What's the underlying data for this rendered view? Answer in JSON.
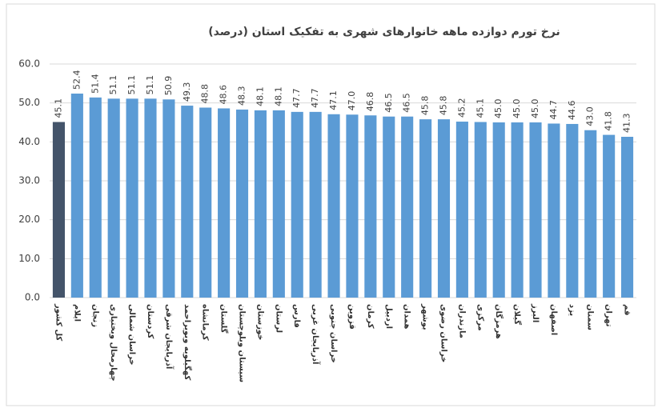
{
  "chart_data": {
    "type": "bar",
    "title": "نرخ تورم دوازده ماهه خانوارهای شهری به تفکیک استان (درصد)",
    "categories": [
      "کل کشور",
      "ایلام",
      "زنجان",
      "چهارمحال وبختیاری",
      "خراسان شمالی",
      "کردستان",
      "آذربایجان شرقی",
      "کهگیلویه وبویراحمد",
      "کرمانشاه",
      "گلستان",
      "سیستان وبلوچستان",
      "خوزستان",
      "لرستان",
      "فارس",
      "آذربایجان غربی",
      "خراسان جنوبی",
      "قزوین",
      "کرمان",
      "اردبیل",
      "همدان",
      "بوشهر",
      "خراسان رضوی",
      "مازندران",
      "مرکزی",
      "هرمزگان",
      "گیلان",
      "البرز",
      "اصفهان",
      "یزد",
      "سمنان",
      "تهران",
      "قم"
    ],
    "values": [
      45.1,
      52.4,
      51.4,
      51.1,
      51.1,
      51.1,
      50.9,
      49.3,
      48.8,
      48.6,
      48.3,
      48.1,
      48.1,
      47.7,
      47.7,
      47.1,
      47.0,
      46.8,
      46.5,
      46.5,
      45.8,
      45.8,
      45.2,
      45.1,
      45.0,
      45.0,
      45.0,
      44.7,
      44.6,
      43.0,
      41.8,
      41.3
    ],
    "value_labels": [
      "45.1",
      "52.4",
      "51.4",
      "51.1",
      "51.1",
      "51.1",
      "50.9",
      "49.3",
      "48.8",
      "48.6",
      "48.3",
      "48.1",
      "48.1",
      "47.7",
      "47.7",
      "47.1",
      "47.0",
      "46.8",
      "46.5",
      "46.5",
      "45.8",
      "45.8",
      "45.2",
      "45.1",
      "45.0",
      "45.0",
      "45.0",
      "44.7",
      "44.6",
      "43.0",
      "41.8",
      "41.3"
    ],
    "colors": [
      "#44546a",
      "#5b9bd5",
      "#5b9bd5",
      "#5b9bd5",
      "#5b9bd5",
      "#5b9bd5",
      "#5b9bd5",
      "#5b9bd5",
      "#5b9bd5",
      "#5b9bd5",
      "#5b9bd5",
      "#5b9bd5",
      "#5b9bd5",
      "#5b9bd5",
      "#5b9bd5",
      "#5b9bd5",
      "#5b9bd5",
      "#5b9bd5",
      "#5b9bd5",
      "#5b9bd5",
      "#5b9bd5",
      "#5b9bd5",
      "#5b9bd5",
      "#5b9bd5",
      "#5b9bd5",
      "#5b9bd5",
      "#5b9bd5",
      "#5b9bd5",
      "#5b9bd5",
      "#5b9bd5",
      "#5b9bd5",
      "#5b9bd5"
    ],
    "ylim": [
      0,
      60
    ],
    "yticks": [
      {
        "value": 0,
        "label": "0.0"
      },
      {
        "value": 10,
        "label": "10.0"
      },
      {
        "value": 20,
        "label": "20.0"
      },
      {
        "value": 30,
        "label": "30.0"
      },
      {
        "value": 40,
        "label": "40.0"
      },
      {
        "value": 50,
        "label": "50.0"
      },
      {
        "value": 60,
        "label": "60.0"
      }
    ],
    "grid": true
  }
}
